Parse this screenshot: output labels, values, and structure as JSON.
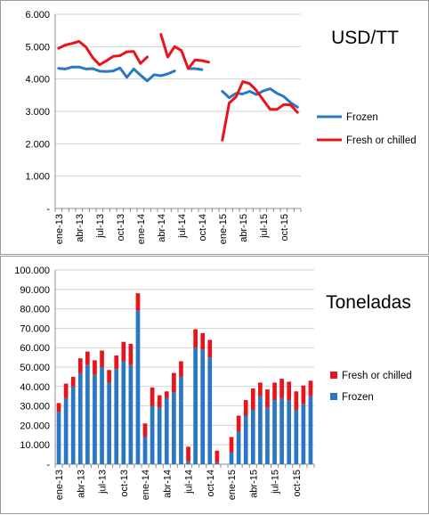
{
  "chart_data": [
    {
      "type": "line",
      "title": "USD/TT",
      "ylim": [
        0,
        6000
      ],
      "y_ticks": [
        "-",
        "1.000",
        "2.000",
        "3.000",
        "4.000",
        "5.000",
        "6.000"
      ],
      "x_tick_labels": [
        "ene-13",
        "abr-13",
        "jul-13",
        "oct-13",
        "ene-14",
        "abr-14",
        "jul-14",
        "oct-14",
        "ene-15",
        "abr-15",
        "jul-15",
        "oct-15"
      ],
      "x": [
        "ene-13",
        "feb-13",
        "mar-13",
        "abr-13",
        "may-13",
        "jun-13",
        "jul-13",
        "ago-13",
        "sep-13",
        "oct-13",
        "nov-13",
        "dic-13",
        "ene-14",
        "feb-14",
        "mar-14",
        "abr-14",
        "may-14",
        "jun-14",
        "jul-14",
        "ago-14",
        "sep-14",
        "oct-14",
        "nov-14",
        "dic-14",
        "ene-15",
        "feb-15",
        "mar-15",
        "abr-15",
        "may-15",
        "jun-15",
        "jul-15",
        "ago-15",
        "sep-15",
        "oct-15",
        "nov-15",
        "dic-15"
      ],
      "grid": true,
      "legend": "right",
      "series": [
        {
          "name": "Frozen",
          "color": "#2a77c6",
          "values": [
            4330,
            4310,
            4370,
            4370,
            4310,
            4320,
            4240,
            4230,
            4250,
            4340,
            4050,
            4310,
            4120,
            3940,
            4130,
            4100,
            4160,
            4250,
            null,
            4320,
            4320,
            4290,
            null,
            null,
            3620,
            3420,
            3560,
            3540,
            3620,
            3520,
            3630,
            3700,
            3560,
            3460,
            3270,
            3130
          ]
        },
        {
          "name": "Fresh or chilled",
          "color": "#e8141c",
          "values": [
            4950,
            5050,
            5100,
            5160,
            4990,
            4660,
            4440,
            4560,
            4700,
            4720,
            4840,
            4850,
            4480,
            4680,
            null,
            5380,
            4680,
            5000,
            4880,
            4320,
            4590,
            4570,
            4520,
            null,
            2110,
            3260,
            3450,
            3920,
            3860,
            3640,
            3350,
            3060,
            3060,
            3210,
            3200,
            2970
          ]
        }
      ]
    },
    {
      "type": "bar",
      "stacked": true,
      "title": "Toneladas",
      "ylim": [
        0,
        100000
      ],
      "y_ticks": [
        "-",
        "10.000",
        "20.000",
        "30.000",
        "40.000",
        "50.000",
        "60.000",
        "70.000",
        "80.000",
        "90.000",
        "100.000"
      ],
      "x_tick_labels": [
        "ene-13",
        "abr-13",
        "jul-13",
        "oct-13",
        "ene-14",
        "abr-14",
        "jul-14",
        "oct-14",
        "ene-15",
        "abr-15",
        "jul-15",
        "oct-15"
      ],
      "grid": true,
      "legend": "right",
      "series": [
        {
          "name": "Frozen",
          "color": "#2a77c6",
          "values": [
            27000,
            34000,
            40000,
            47000,
            51000,
            46000,
            50000,
            42000,
            49000,
            53000,
            51000,
            79000,
            14000,
            30000,
            29000,
            34000,
            37000,
            45000,
            1500,
            60000,
            59000,
            55000,
            1000,
            0,
            6000,
            17000,
            25000,
            28000,
            35000,
            29000,
            33000,
            34000,
            33000,
            28000,
            31000,
            35000
          ]
        },
        {
          "name": "Fresh or chilled",
          "color": "#e8141c",
          "values": [
            4500,
            7500,
            5000,
            7500,
            7000,
            7500,
            8500,
            6500,
            7000,
            10000,
            11000,
            9000,
            7000,
            9500,
            6500,
            3500,
            10000,
            8000,
            7500,
            9500,
            8500,
            9000,
            6000,
            0,
            8000,
            8000,
            8000,
            11000,
            7000,
            9500,
            9000,
            10000,
            9500,
            9500,
            9500,
            8000
          ]
        }
      ]
    }
  ]
}
